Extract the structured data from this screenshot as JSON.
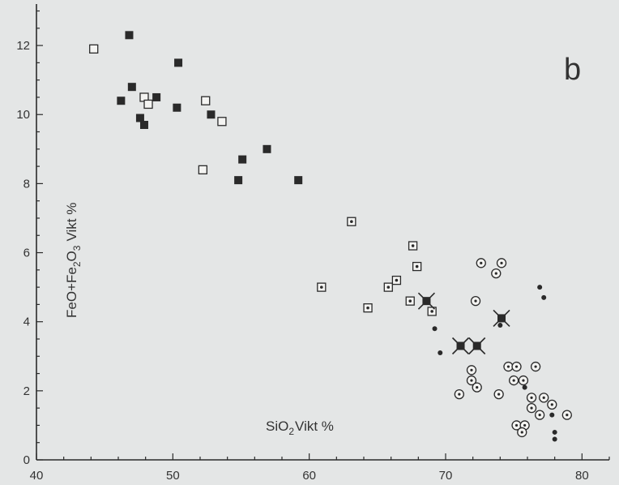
{
  "chart_data": {
    "type": "scatter",
    "panel_label": "b",
    "xlabel_parts": [
      "SiO",
      "2",
      "Vikt  %"
    ],
    "ylabel_parts": [
      "FeO+Fe",
      "2",
      "O",
      "3",
      "Vikt  %"
    ],
    "xlim": [
      40,
      82
    ],
    "ylim": [
      0,
      13.2
    ],
    "x_ticks": [
      40,
      50,
      60,
      70,
      80
    ],
    "y_ticks": [
      0,
      2,
      4,
      6,
      8,
      10,
      12
    ],
    "grid": false,
    "marker_color": "#2a2a2a",
    "background": "#e4e6e6",
    "series": [
      {
        "marker": "filled-square",
        "points": [
          [
            46.8,
            12.3
          ],
          [
            46.2,
            10.4
          ],
          [
            47.0,
            10.8
          ],
          [
            47.6,
            9.9
          ],
          [
            47.9,
            9.7
          ],
          [
            48.8,
            10.5
          ],
          [
            50.4,
            11.5
          ],
          [
            50.3,
            10.2
          ],
          [
            52.8,
            10.0
          ],
          [
            55.1,
            8.7
          ],
          [
            56.9,
            9.0
          ],
          [
            54.8,
            8.1
          ],
          [
            59.2,
            8.1
          ]
        ]
      },
      {
        "marker": "open-square",
        "points": [
          [
            44.2,
            11.9
          ],
          [
            47.9,
            10.5
          ],
          [
            48.2,
            10.3
          ],
          [
            52.4,
            10.4
          ],
          [
            53.6,
            9.8
          ],
          [
            52.2,
            8.4
          ]
        ]
      },
      {
        "marker": "dotted-square",
        "points": [
          [
            60.9,
            5.0
          ],
          [
            63.1,
            6.9
          ],
          [
            64.3,
            4.4
          ],
          [
            65.8,
            5.0
          ],
          [
            66.4,
            5.2
          ],
          [
            67.6,
            6.2
          ],
          [
            67.9,
            5.6
          ],
          [
            67.4,
            4.6
          ],
          [
            69.0,
            4.3
          ]
        ]
      },
      {
        "marker": "crossed-square",
        "points": [
          [
            68.6,
            4.6
          ],
          [
            74.1,
            4.1
          ],
          [
            71.1,
            3.3
          ],
          [
            72.3,
            3.3
          ]
        ]
      },
      {
        "marker": "dotted-circle",
        "points": [
          [
            72.6,
            5.7
          ],
          [
            74.1,
            5.7
          ],
          [
            73.7,
            5.4
          ],
          [
            72.2,
            4.6
          ],
          [
            71.9,
            2.6
          ],
          [
            71.9,
            2.3
          ],
          [
            72.3,
            2.1
          ],
          [
            71.0,
            1.9
          ],
          [
            73.9,
            1.9
          ],
          [
            74.6,
            2.7
          ],
          [
            75.2,
            2.7
          ],
          [
            75.0,
            2.3
          ],
          [
            75.7,
            2.3
          ],
          [
            76.3,
            1.8
          ],
          [
            76.3,
            1.5
          ],
          [
            77.2,
            1.8
          ],
          [
            76.6,
            2.7
          ],
          [
            76.9,
            1.3
          ],
          [
            77.8,
            1.6
          ],
          [
            75.2,
            1.0
          ],
          [
            75.8,
            1.0
          ],
          [
            75.6,
            0.8
          ],
          [
            78.9,
            1.3
          ]
        ]
      },
      {
        "marker": "dot",
        "points": [
          [
            76.9,
            5.0
          ],
          [
            77.2,
            4.7
          ],
          [
            74.0,
            3.9
          ],
          [
            69.2,
            3.8
          ],
          [
            69.6,
            3.1
          ],
          [
            75.8,
            2.1
          ],
          [
            77.8,
            1.3
          ],
          [
            78.0,
            0.8
          ],
          [
            78.0,
            0.6
          ]
        ]
      }
    ]
  }
}
